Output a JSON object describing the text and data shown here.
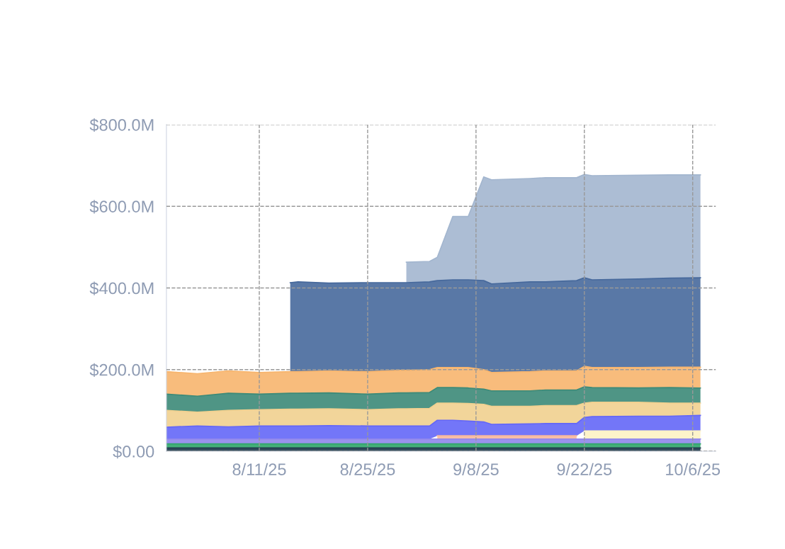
{
  "chart_data": {
    "type": "area",
    "stacked": true,
    "grid": true,
    "line_style": "dashed",
    "x": [
      "2025-07-30",
      "2025-08-03",
      "2025-08-07",
      "2025-08-11",
      "2025-08-15",
      "2025-08-16",
      "2025-08-20",
      "2025-08-25",
      "2025-08-29",
      "2025-08-30",
      "2025-09-02",
      "2025-09-03",
      "2025-09-05",
      "2025-09-07",
      "2025-09-09",
      "2025-09-10",
      "2025-09-15",
      "2025-09-17",
      "2025-09-21",
      "2025-09-22",
      "2025-09-23",
      "2025-09-29",
      "2025-10-03",
      "2025-10-07"
    ],
    "series": [
      {
        "color": "#1f3b4d",
        "values": [
          8,
          8,
          8,
          8,
          8,
          8,
          8,
          8,
          8,
          8,
          8,
          8,
          8,
          8,
          8,
          8,
          8,
          8,
          8,
          8,
          8,
          8,
          8,
          8
        ]
      },
      {
        "color": "#2fa56b",
        "values": [
          10,
          10,
          10,
          10,
          10,
          10,
          10,
          10,
          10,
          10,
          10,
          10,
          10,
          10,
          10,
          10,
          10,
          10,
          10,
          10,
          10,
          10,
          10,
          10
        ]
      },
      {
        "color": "#8f86ec",
        "values": [
          12,
          12,
          12,
          12,
          12,
          12,
          12,
          12,
          12,
          12,
          12,
          12,
          12,
          12,
          12,
          12,
          12,
          12,
          12,
          12,
          12,
          12,
          12,
          12
        ]
      },
      {
        "color": "#f6b79c",
        "values": [
          null,
          null,
          null,
          null,
          null,
          null,
          null,
          null,
          null,
          null,
          null,
          8,
          8,
          8,
          8,
          8,
          8,
          8,
          8,
          null,
          null,
          null,
          null,
          null
        ]
      },
      {
        "color": "#fdf2c4",
        "values": [
          null,
          null,
          null,
          null,
          null,
          null,
          null,
          null,
          null,
          null,
          null,
          null,
          null,
          null,
          null,
          null,
          null,
          null,
          null,
          20,
          20,
          20,
          20,
          20
        ]
      },
      {
        "color": "#6467f7",
        "values": [
          29,
          32,
          30,
          32,
          32,
          32,
          33,
          32,
          32,
          32,
          32,
          38,
          38,
          36,
          34,
          28,
          29,
          30,
          30,
          33,
          35,
          36,
          36,
          38
        ]
      },
      {
        "color": "#f1d08f",
        "values": [
          41,
          34,
          40,
          40,
          41,
          41,
          41,
          40,
          42,
          42,
          43,
          42,
          42,
          43,
          43,
          44,
          43,
          44,
          44,
          35,
          35,
          34,
          32,
          30
        ]
      },
      {
        "color": "#3c8a78",
        "values": [
          40,
          39,
          42,
          38,
          39,
          39,
          39,
          38,
          39,
          39,
          39,
          38,
          38,
          38,
          37,
          38,
          38,
          38,
          38,
          40,
          36,
          35,
          38,
          37
        ]
      },
      {
        "color": "#f7b56e",
        "values": [
          55,
          55,
          55,
          53,
          53,
          53,
          54,
          55,
          55,
          55,
          56,
          49,
          49,
          50,
          48,
          45,
          47,
          47,
          47,
          50,
          49,
          50,
          50,
          51
        ]
      },
      {
        "color": "#47699c",
        "values": [
          null,
          null,
          null,
          null,
          218,
          220,
          215,
          218,
          215,
          215,
          215,
          213,
          215,
          215,
          218,
          217,
          220,
          218,
          221,
          217,
          215,
          217,
          218,
          219
        ]
      },
      {
        "color": "#a3b6cf",
        "values": [
          null,
          null,
          null,
          null,
          null,
          null,
          null,
          null,
          null,
          50,
          50,
          57,
          155,
          155,
          254,
          255,
          253,
          255,
          252,
          253,
          255,
          254,
          253,
          252
        ]
      }
    ],
    "ylim": [
      0,
      800
    ],
    "yticks": [
      {
        "value": 0,
        "label": "$0.00"
      },
      {
        "value": 200,
        "label": "$200.0M"
      },
      {
        "value": 400,
        "label": "$400.0M"
      },
      {
        "value": 600,
        "label": "$600.0M"
      },
      {
        "value": 800,
        "label": "$800.0M"
      }
    ],
    "xlim": [
      "2025-07-30",
      "2025-10-09"
    ],
    "xticks": [
      {
        "value": "2025-08-11",
        "label": "8/11/25"
      },
      {
        "value": "2025-08-25",
        "label": "8/25/25"
      },
      {
        "value": "2025-09-08",
        "label": "9/8/25"
      },
      {
        "value": "2025-09-22",
        "label": "9/22/25"
      },
      {
        "value": "2025-10-06",
        "label": "10/6/25"
      }
    ]
  }
}
